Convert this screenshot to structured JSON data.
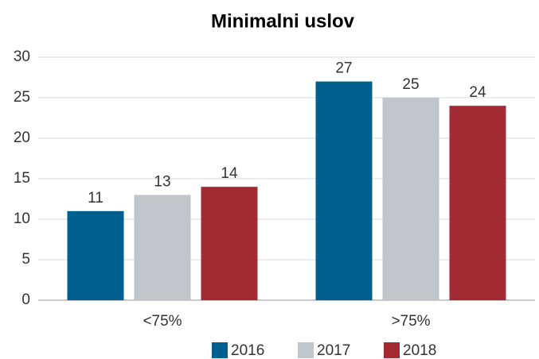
{
  "chart_data": {
    "type": "bar",
    "title": "Minimalni uslov",
    "categories": [
      "<75%",
      ">75%"
    ],
    "series": [
      {
        "name": "2016",
        "color": "#005f8e",
        "values": [
          11,
          27
        ]
      },
      {
        "name": "2017",
        "color": "#c1c6cc",
        "values": [
          13,
          25
        ]
      },
      {
        "name": "2018",
        "color": "#a32a32",
        "values": [
          14,
          24
        ]
      }
    ],
    "ylim": [
      0,
      30
    ],
    "yticks": [
      0,
      5,
      10,
      15,
      20,
      25,
      30
    ],
    "grid": true,
    "legend": "bottom"
  }
}
